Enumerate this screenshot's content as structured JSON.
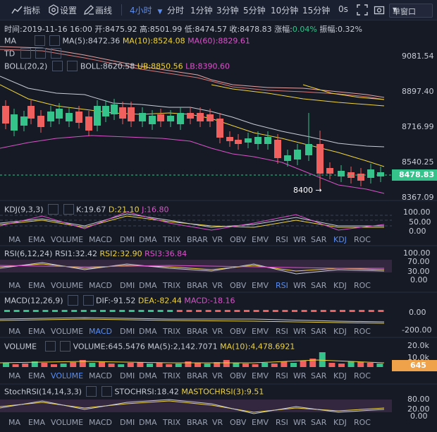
{
  "toolbar": {
    "indicators_label": "指标",
    "settings_label": "设置",
    "draw_label": "画线",
    "interval_selected": "4小时",
    "intervals": [
      "分时",
      "1分钟",
      "3分钟",
      "5分钟",
      "10分钟",
      "15分钟",
      "0s"
    ],
    "window_mode": "单窗口"
  },
  "ohlc": {
    "time": "时间:2019-11-16 16:00",
    "open": "开:8475.92",
    "high": "高:8501.99",
    "low": "低:8474.57",
    "close": "收:8478.83",
    "change_label": "涨幅:",
    "change_value": "0.04%",
    "amplitude": "振幅:0.32%"
  },
  "main": {
    "ma_name": "MA",
    "ma5": "MA(5):8472.36",
    "ma10": "MA(10):8524.08",
    "ma60": "MA(60):8829.61",
    "td_name": "TD",
    "boll_name": "BOLL(20,2)",
    "boll": "BOLL:8620.58",
    "ub": "UB:8850.56",
    "lb": "LB:8390.60",
    "axis": [
      "9081.54",
      "8897.40",
      "8716.99",
      "8540.25",
      "8367.09"
    ],
    "current_price": "8478.83",
    "low_marker": "8400"
  },
  "kdj": {
    "name": "KDJ(9,3,3)",
    "k": "K:19.67",
    "d": "D:21.10",
    "j": "J:16.80",
    "axis": [
      "100.00",
      "50.00",
      "0.00"
    ]
  },
  "rsi": {
    "name": "RSI(6,12,24)",
    "rsi1": "RSI1:32.42",
    "rsi2": "RSI2:32.90",
    "rsi3": "RSI3:36.84",
    "axis": [
      "100.00",
      "70.00",
      "30.00",
      "0.00"
    ]
  },
  "macd": {
    "name": "MACD(12,26,9)",
    "dif": "DIF:-91.52",
    "dea": "DEA:-82.44",
    "macd": "MACD:-18.16",
    "axis": [
      "0.00",
      "-200.00"
    ]
  },
  "volume": {
    "name": "VOLUME",
    "volume": "VOLUME:645.5476",
    "ma5": "MA(5):2,142.7071",
    "ma10": "MA(10):4,478.6921",
    "axis": [
      "20.0k",
      "10.0k"
    ],
    "current": "645"
  },
  "stochrsi": {
    "name": "StochRSI(14,14,3,3)",
    "stoch": "STOCHRSI:18.42",
    "mastoch": "MASTOCHRSI(3):9.51",
    "axis": [
      "80.00",
      "20.00",
      "0.00"
    ]
  },
  "indicator_tabs": [
    "MA",
    "EMA",
    "VOLUME",
    "MACD",
    "DMI",
    "DMA",
    "TRIX",
    "BRAR",
    "VR",
    "OBV",
    "EMV",
    "RSI",
    "WR",
    "SAR",
    "KDJ",
    "ROC"
  ],
  "colors": {
    "up": "#36c28b",
    "down": "#f0605f",
    "accent": "#5b8def",
    "yellow": "#f0d43a",
    "magenta": "#d854c9",
    "white_line": "#c7ccd6",
    "orange": "#f0a24a"
  }
}
